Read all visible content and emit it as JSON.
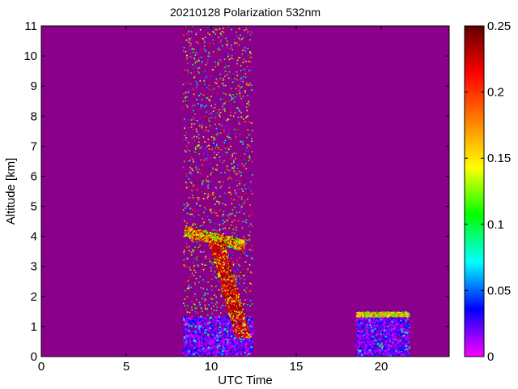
{
  "chart_data": {
    "type": "heatmap",
    "title": "20210128 Polarization 532nm",
    "xlabel": "UTC Time",
    "ylabel": "Altitude [km]",
    "xlim": [
      0,
      24
    ],
    "ylim": [
      0,
      11
    ],
    "x_ticks": [
      "0",
      "5",
      "10",
      "15",
      "20"
    ],
    "y_ticks": [
      "0",
      "1",
      "2",
      "3",
      "4",
      "5",
      "6",
      "7",
      "8",
      "9",
      "10",
      "11"
    ],
    "colorbar": {
      "range": [
        0,
        0.25
      ],
      "ticks": [
        "0",
        "0.05",
        "0.1",
        "0.15",
        "0.2",
        "0.25"
      ],
      "colormap": [
        "#ff00ff",
        "#0000ff",
        "#00ffff",
        "#00ff00",
        "#ffff00",
        "#ff8000",
        "#ff0000",
        "#600000"
      ]
    },
    "background_color": "#8b008b",
    "regions": [
      {
        "name": "noisy-sampling",
        "x_range": [
          8.3,
          12.4
        ],
        "alt_range": [
          0,
          11
        ],
        "value_range": [
          0,
          0.25
        ]
      },
      {
        "name": "cloud-layer-top",
        "x_range": [
          8.4,
          11.9
        ],
        "alt_range": [
          3.7,
          4.3
        ],
        "value_range": [
          0.1,
          0.25
        ]
      },
      {
        "name": "depolarizing-descent",
        "x_range": [
          10.4,
          12.0
        ],
        "alt_range": [
          0.6,
          3.8
        ],
        "value_range": [
          0.2,
          0.25
        ]
      },
      {
        "name": "boundary-layer-morning",
        "x_range": [
          8.3,
          12.4
        ],
        "alt_range": [
          0,
          1.3
        ],
        "value_range": [
          0.0,
          0.04
        ]
      },
      {
        "name": "boundary-layer-evening",
        "x_range": [
          18.5,
          21.6
        ],
        "alt_range": [
          0,
          1.45
        ],
        "value_range": [
          0.0,
          0.04
        ]
      },
      {
        "name": "evening-layer-top",
        "x_range": [
          18.5,
          21.6
        ],
        "alt_range": [
          1.3,
          1.45
        ],
        "value_range": [
          0.1,
          0.2
        ]
      }
    ]
  }
}
